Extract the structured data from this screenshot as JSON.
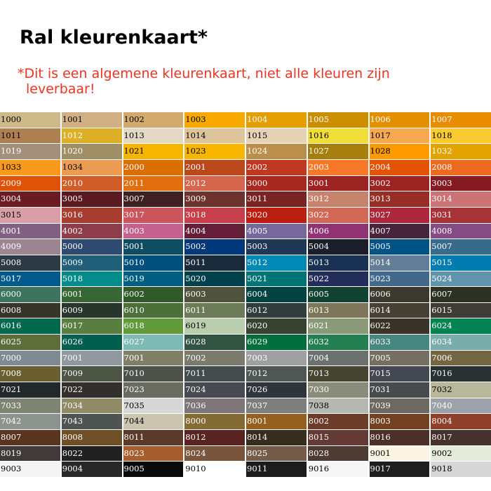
{
  "title": "Ral kleurenkaart*",
  "subtitle_line1": "*Dit is een algemene kleurenkaart, niet alle kleuren zijn",
  "subtitle_line2": "leverbaar!",
  "swatches": [
    {
      "code": "1000",
      "color": "#CDBA88",
      "text": "#000000"
    },
    {
      "code": "1001",
      "color": "#D0B084",
      "text": "#000000"
    },
    {
      "code": "1002",
      "color": "#D2AA6D",
      "text": "#000000"
    },
    {
      "code": "1003",
      "color": "#F9A800",
      "text": "#000000"
    },
    {
      "code": "1004",
      "color": "#E49E00",
      "text": "#ffffff"
    },
    {
      "code": "1005",
      "color": "#CB8E00",
      "text": "#ffffff"
    },
    {
      "code": "1006",
      "color": "#E29000",
      "text": "#ffffff"
    },
    {
      "code": "1007",
      "color": "#E88C00",
      "text": "#ffffff"
    },
    {
      "code": "1011",
      "color": "#AF804F",
      "text": "#000000"
    },
    {
      "code": "1012",
      "color": "#DDAF27",
      "text": "#ffffff"
    },
    {
      "code": "1013",
      "color": "#E3D9C6",
      "text": "#000000"
    },
    {
      "code": "1014",
      "color": "#DDC49A",
      "text": "#000000"
    },
    {
      "code": "1015",
      "color": "#E6D2B5",
      "text": "#000000"
    },
    {
      "code": "1016",
      "color": "#F1DD38",
      "text": "#000000"
    },
    {
      "code": "1017",
      "color": "#F6A950",
      "text": "#000000"
    },
    {
      "code": "1018",
      "color": "#FACA30",
      "text": "#000000"
    },
    {
      "code": "1019",
      "color": "#A48F7A",
      "text": "#ffffff"
    },
    {
      "code": "1020",
      "color": "#A08F65",
      "text": "#ffffff"
    },
    {
      "code": "1021",
      "color": "#F6B600",
      "text": "#000000"
    },
    {
      "code": "1023",
      "color": "#F7B500",
      "text": "#000000"
    },
    {
      "code": "1024",
      "color": "#BA8F4C",
      "text": "#ffffff"
    },
    {
      "code": "1027",
      "color": "#A77F0E",
      "text": "#ffffff"
    },
    {
      "code": "1028",
      "color": "#FF9B00",
      "text": "#000000"
    },
    {
      "code": "1032",
      "color": "#E2A300",
      "text": "#ffffff"
    },
    {
      "code": "1033",
      "color": "#F99A1C",
      "text": "#000000"
    },
    {
      "code": "1034",
      "color": "#EB9C52",
      "text": "#000000"
    },
    {
      "code": "2000",
      "color": "#DA6E00",
      "text": "#ffffff"
    },
    {
      "code": "2001",
      "color": "#BA481B",
      "text": "#ffffff"
    },
    {
      "code": "2002",
      "color": "#BF3922",
      "text": "#ffffff"
    },
    {
      "code": "2003",
      "color": "#F67828",
      "text": "#ffffff"
    },
    {
      "code": "2004",
      "color": "#E25303",
      "text": "#ffffff"
    },
    {
      "code": "2008",
      "color": "#ED6B21",
      "text": "#ffffff"
    },
    {
      "code": "2009",
      "color": "#DE5307",
      "text": "#ffffff"
    },
    {
      "code": "2010",
      "color": "#D05D28",
      "text": "#ffffff"
    },
    {
      "code": "2011",
      "color": "#E26E0E",
      "text": "#ffffff"
    },
    {
      "code": "2012",
      "color": "#D5654D",
      "text": "#ffffff"
    },
    {
      "code": "3000",
      "color": "#A72920",
      "text": "#ffffff"
    },
    {
      "code": "3001",
      "color": "#9B2423",
      "text": "#ffffff"
    },
    {
      "code": "3002",
      "color": "#9B2321",
      "text": "#ffffff"
    },
    {
      "code": "3003",
      "color": "#861A22",
      "text": "#ffffff"
    },
    {
      "code": "3004",
      "color": "#6B1C23",
      "text": "#ffffff"
    },
    {
      "code": "3005",
      "color": "#59191F",
      "text": "#ffffff"
    },
    {
      "code": "3007",
      "color": "#3E2022",
      "text": "#ffffff"
    },
    {
      "code": "3009",
      "color": "#6D342D",
      "text": "#ffffff"
    },
    {
      "code": "3011",
      "color": "#792423",
      "text": "#ffffff"
    },
    {
      "code": "3012",
      "color": "#C6846D",
      "text": "#ffffff"
    },
    {
      "code": "3013",
      "color": "#972E25",
      "text": "#ffffff"
    },
    {
      "code": "3014",
      "color": "#CB7375",
      "text": "#ffffff"
    },
    {
      "code": "3015",
      "color": "#D8A0A6",
      "text": "#000000"
    },
    {
      "code": "3016",
      "color": "#A63D2F",
      "text": "#ffffff"
    },
    {
      "code": "3017",
      "color": "#CB555D",
      "text": "#ffffff"
    },
    {
      "code": "3018",
      "color": "#C73F4A",
      "text": "#ffffff"
    },
    {
      "code": "3020",
      "color": "#BB1E10",
      "text": "#ffffff"
    },
    {
      "code": "3022",
      "color": "#CF6955",
      "text": "#ffffff"
    },
    {
      "code": "3027",
      "color": "#AB273C",
      "text": "#ffffff"
    },
    {
      "code": "3031",
      "color": "#A63437",
      "text": "#ffffff"
    },
    {
      "code": "4001",
      "color": "#816183",
      "text": "#ffffff"
    },
    {
      "code": "4002",
      "color": "#8D3C4B",
      "text": "#ffffff"
    },
    {
      "code": "4003",
      "color": "#C4618C",
      "text": "#ffffff"
    },
    {
      "code": "4004",
      "color": "#651E38",
      "text": "#ffffff"
    },
    {
      "code": "4005",
      "color": "#76689A",
      "text": "#ffffff"
    },
    {
      "code": "4006",
      "color": "#903373",
      "text": "#ffffff"
    },
    {
      "code": "4007",
      "color": "#47243C",
      "text": "#ffffff"
    },
    {
      "code": "4008",
      "color": "#844C82",
      "text": "#ffffff"
    },
    {
      "code": "4009",
      "color": "#9D8692",
      "text": "#ffffff"
    },
    {
      "code": "5000",
      "color": "#2F4A71",
      "text": "#ffffff"
    },
    {
      "code": "5001",
      "color": "#0E4C64",
      "text": "#ffffff"
    },
    {
      "code": "5002",
      "color": "#00387A",
      "text": "#ffffff"
    },
    {
      "code": "5003",
      "color": "#1F3855",
      "text": "#ffffff"
    },
    {
      "code": "5004",
      "color": "#191E28",
      "text": "#ffffff"
    },
    {
      "code": "5005",
      "color": "#005387",
      "text": "#ffffff"
    },
    {
      "code": "5007",
      "color": "#376B8C",
      "text": "#ffffff"
    },
    {
      "code": "5008",
      "color": "#2B3A44",
      "text": "#ffffff"
    },
    {
      "code": "5009",
      "color": "#215F78",
      "text": "#ffffff"
    },
    {
      "code": "5010",
      "color": "#004F7C",
      "text": "#ffffff"
    },
    {
      "code": "5011",
      "color": "#1A2B3C",
      "text": "#ffffff"
    },
    {
      "code": "5012",
      "color": "#0089B6",
      "text": "#ffffff"
    },
    {
      "code": "5013",
      "color": "#193153",
      "text": "#ffffff"
    },
    {
      "code": "5014",
      "color": "#637D96",
      "text": "#ffffff"
    },
    {
      "code": "5015",
      "color": "#007CB0",
      "text": "#ffffff"
    },
    {
      "code": "5017",
      "color": "#005B8C",
      "text": "#ffffff"
    },
    {
      "code": "5018",
      "color": "#048B8C",
      "text": "#ffffff"
    },
    {
      "code": "5019",
      "color": "#005E83",
      "text": "#ffffff"
    },
    {
      "code": "5020",
      "color": "#00414B",
      "text": "#ffffff"
    },
    {
      "code": "5021",
      "color": "#007577",
      "text": "#ffffff"
    },
    {
      "code": "5022",
      "color": "#222D5A",
      "text": "#ffffff"
    },
    {
      "code": "5023",
      "color": "#42698C",
      "text": "#ffffff"
    },
    {
      "code": "5024",
      "color": "#6093AC",
      "text": "#ffffff"
    },
    {
      "code": "6000",
      "color": "#3C7460",
      "text": "#ffffff"
    },
    {
      "code": "6001",
      "color": "#366735",
      "text": "#ffffff"
    },
    {
      "code": "6002",
      "color": "#325928",
      "text": "#ffffff"
    },
    {
      "code": "6003",
      "color": "#50533C",
      "text": "#ffffff"
    },
    {
      "code": "6004",
      "color": "#024442",
      "text": "#ffffff"
    },
    {
      "code": "6005",
      "color": "#114232",
      "text": "#ffffff"
    },
    {
      "code": "6006",
      "color": "#3C392E",
      "text": "#ffffff"
    },
    {
      "code": "6007",
      "color": "#2C3222",
      "text": "#ffffff"
    },
    {
      "code": "6008",
      "color": "#37342A",
      "text": "#ffffff"
    },
    {
      "code": "6009",
      "color": "#27352A",
      "text": "#ffffff"
    },
    {
      "code": "6010",
      "color": "#4D6F39",
      "text": "#ffffff"
    },
    {
      "code": "6011",
      "color": "#6C7C59",
      "text": "#ffffff"
    },
    {
      "code": "6012",
      "color": "#303D3A",
      "text": "#ffffff"
    },
    {
      "code": "6013",
      "color": "#7D765A",
      "text": "#ffffff"
    },
    {
      "code": "6014",
      "color": "#474135",
      "text": "#ffffff"
    },
    {
      "code": "6015",
      "color": "#3D3D36",
      "text": "#ffffff"
    },
    {
      "code": "6016",
      "color": "#00694C",
      "text": "#ffffff"
    },
    {
      "code": "6017",
      "color": "#587F40",
      "text": "#ffffff"
    },
    {
      "code": "6018",
      "color": "#61993B",
      "text": "#ffffff"
    },
    {
      "code": "6019",
      "color": "#B9CEAC",
      "text": "#000000"
    },
    {
      "code": "6020",
      "color": "#37422F",
      "text": "#ffffff"
    },
    {
      "code": "6021",
      "color": "#8A9977",
      "text": "#ffffff"
    },
    {
      "code": "6022",
      "color": "#3A3327",
      "text": "#ffffff"
    },
    {
      "code": "6024",
      "color": "#008351",
      "text": "#ffffff"
    },
    {
      "code": "6025",
      "color": "#5E6E3B",
      "text": "#ffffff"
    },
    {
      "code": "6026",
      "color": "#005F4E",
      "text": "#ffffff"
    },
    {
      "code": "6027",
      "color": "#7EBAB5",
      "text": "#ffffff"
    },
    {
      "code": "6028",
      "color": "#315442",
      "text": "#ffffff"
    },
    {
      "code": "6029",
      "color": "#006F3D",
      "text": "#ffffff"
    },
    {
      "code": "6032",
      "color": "#237F52",
      "text": "#ffffff"
    },
    {
      "code": "6033",
      "color": "#46877F",
      "text": "#ffffff"
    },
    {
      "code": "6034",
      "color": "#7AACAC",
      "text": "#ffffff"
    },
    {
      "code": "7000",
      "color": "#7E8B92",
      "text": "#ffffff"
    },
    {
      "code": "7001",
      "color": "#8F999F",
      "text": "#ffffff"
    },
    {
      "code": "7001",
      "color": "#817F68",
      "text": "#ffffff"
    },
    {
      "code": "7002",
      "color": "#7A7B6D",
      "text": "#ffffff"
    },
    {
      "code": "7003",
      "color": "#9EA0A1",
      "text": "#ffffff"
    },
    {
      "code": "7004",
      "color": "#6B716F",
      "text": "#ffffff"
    },
    {
      "code": "7005",
      "color": "#756F61",
      "text": "#ffffff"
    },
    {
      "code": "7006",
      "color": "#746643",
      "text": "#ffffff"
    },
    {
      "code": "7008",
      "color": "#6A5F31",
      "text": "#ffffff"
    },
    {
      "code": "7009",
      "color": "#4D5645",
      "text": "#ffffff"
    },
    {
      "code": "7010",
      "color": "#4C514A",
      "text": "#ffffff"
    },
    {
      "code": "7011",
      "color": "#434B4D",
      "text": "#ffffff"
    },
    {
      "code": "7012",
      "color": "#4E5754",
      "text": "#ffffff"
    },
    {
      "code": "7013",
      "color": "#464531",
      "text": "#ffffff"
    },
    {
      "code": "7015",
      "color": "#434750",
      "text": "#ffffff"
    },
    {
      "code": "7016",
      "color": "#293133",
      "text": "#ffffff"
    },
    {
      "code": "7021",
      "color": "#23282B",
      "text": "#ffffff"
    },
    {
      "code": "7022",
      "color": "#332F2C",
      "text": "#ffffff"
    },
    {
      "code": "7023",
      "color": "#686C5E",
      "text": "#ffffff"
    },
    {
      "code": "7024",
      "color": "#474A51",
      "text": "#ffffff"
    },
    {
      "code": "7026",
      "color": "#2F353B",
      "text": "#ffffff"
    },
    {
      "code": "7030",
      "color": "#8B8C7A",
      "text": "#ffffff"
    },
    {
      "code": "7031",
      "color": "#474B4E",
      "text": "#ffffff"
    },
    {
      "code": "7032",
      "color": "#B8B799",
      "text": "#000000"
    },
    {
      "code": "7033",
      "color": "#7D8471",
      "text": "#ffffff"
    },
    {
      "code": "7034",
      "color": "#8F8B66",
      "text": "#ffffff"
    },
    {
      "code": "7035",
      "color": "#D7D7D7",
      "text": "#000000"
    },
    {
      "code": "7036",
      "color": "#7F7679",
      "text": "#ffffff"
    },
    {
      "code": "7037",
      "color": "#7D7F7D",
      "text": "#ffffff"
    },
    {
      "code": "7038",
      "color": "#B5B8B1",
      "text": "#000000"
    },
    {
      "code": "7039",
      "color": "#6C6960",
      "text": "#ffffff"
    },
    {
      "code": "7040",
      "color": "#9DA1AA",
      "text": "#ffffff"
    },
    {
      "code": "7042",
      "color": "#8D948D",
      "text": "#ffffff"
    },
    {
      "code": "7043",
      "color": "#4E5452",
      "text": "#ffffff"
    },
    {
      "code": "7044",
      "color": "#CAC4B0",
      "text": "#000000"
    },
    {
      "code": "8000",
      "color": "#826C34",
      "text": "#ffffff"
    },
    {
      "code": "8001",
      "color": "#955F20",
      "text": "#ffffff"
    },
    {
      "code": "8002",
      "color": "#6C3B2A",
      "text": "#ffffff"
    },
    {
      "code": "8003",
      "color": "#734222",
      "text": "#ffffff"
    },
    {
      "code": "8004",
      "color": "#8E402A",
      "text": "#ffffff"
    },
    {
      "code": "8007",
      "color": "#59351F",
      "text": "#ffffff"
    },
    {
      "code": "8008",
      "color": "#6F4F28",
      "text": "#ffffff"
    },
    {
      "code": "8011",
      "color": "#5B3A29",
      "text": "#ffffff"
    },
    {
      "code": "8012",
      "color": "#592321",
      "text": "#ffffff"
    },
    {
      "code": "8014",
      "color": "#382C1E",
      "text": "#ffffff"
    },
    {
      "code": "8015",
      "color": "#633A34",
      "text": "#ffffff"
    },
    {
      "code": "8016",
      "color": "#4C2F27",
      "text": "#ffffff"
    },
    {
      "code": "8017",
      "color": "#45322E",
      "text": "#ffffff"
    },
    {
      "code": "8019",
      "color": "#403A3A",
      "text": "#ffffff"
    },
    {
      "code": "8022",
      "color": "#212121",
      "text": "#ffffff"
    },
    {
      "code": "8023",
      "color": "#A65E2E",
      "text": "#ffffff"
    },
    {
      "code": "8024",
      "color": "#79553D",
      "text": "#ffffff"
    },
    {
      "code": "8025",
      "color": "#755C48",
      "text": "#ffffff"
    },
    {
      "code": "8028",
      "color": "#4E3B31",
      "text": "#ffffff"
    },
    {
      "code": "9001",
      "color": "#FDF4E3",
      "text": "#000000"
    },
    {
      "code": "9002",
      "color": "#E7EBDA",
      "text": "#000000"
    },
    {
      "code": "9003",
      "color": "#F4F4F4",
      "text": "#000000"
    },
    {
      "code": "9004",
      "color": "#282828",
      "text": "#ffffff"
    },
    {
      "code": "9005",
      "color": "#0A0A0A",
      "text": "#ffffff"
    },
    {
      "code": "9010",
      "color": "#FFFFFF",
      "text": "#000000"
    },
    {
      "code": "9011",
      "color": "#1C1C1C",
      "text": "#ffffff"
    },
    {
      "code": "9016",
      "color": "#F6F6F6",
      "text": "#000000"
    },
    {
      "code": "9017",
      "color": "#1E1E1E",
      "text": "#ffffff"
    },
    {
      "code": "9018",
      "color": "#D7D7D7",
      "text": "#000000"
    }
  ]
}
